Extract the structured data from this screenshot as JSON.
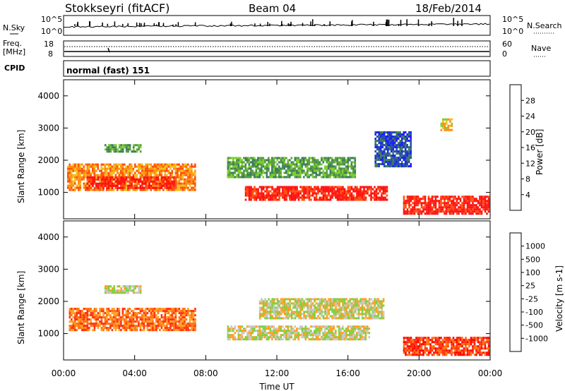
{
  "header": {
    "radar": "Stokkseyri (fitACF)",
    "beam": "Beam 04",
    "date": "18/Feb/2014"
  },
  "noise_panel": {
    "left_label": "N.Sky",
    "right_label": "N.Search",
    "ticks_left": [
      "10^5",
      "10^0"
    ],
    "ticks_right": [
      "10^5",
      "10^0"
    ]
  },
  "freq_panel": {
    "left_label": "Freq.",
    "unit": "[MHz]",
    "right_label": "Nave",
    "ticks_left": [
      "18",
      "8"
    ],
    "ticks_right": [
      "60",
      "0"
    ]
  },
  "cpid_panel": {
    "label": "CPID",
    "text": "normal (fast) 151"
  },
  "chart_data": [
    {
      "type": "heatmap",
      "quantity": "Power",
      "xlabel": "",
      "ylabel": "Slant Range [km]",
      "x_range_hours": [
        0,
        24
      ],
      "y_range_km": [
        180,
        4500
      ],
      "y_ticks": [
        "1000",
        "2000",
        "3000",
        "4000"
      ],
      "colorbar_label": "Power [dB]",
      "colorbar_ticks": [
        "28",
        "24",
        "20",
        "16",
        "12",
        "8",
        "4"
      ],
      "colorbar_colors": [
        "#2020ff",
        "#2b4faa",
        "#3f7f5f",
        "#5a9f40",
        "#7fcf30",
        "#f0c020",
        "#ff9010",
        "#ff5010",
        "#ff1010"
      ],
      "regions": [
        {
          "x": [
            0.2,
            7.4
          ],
          "y": [
            1050,
            1900
          ],
          "level": 6
        },
        {
          "x": [
            1.3,
            6.3
          ],
          "y": [
            1150,
            1500
          ],
          "level": 8
        },
        {
          "x": [
            9.2,
            16.4
          ],
          "y": [
            1500,
            2100
          ],
          "level": 3
        },
        {
          "x": [
            10.2,
            18.2
          ],
          "y": [
            800,
            1200
          ],
          "level": 8
        },
        {
          "x": [
            19.1,
            23.9
          ],
          "y": [
            350,
            900
          ],
          "level": 8
        },
        {
          "x": [
            2.3,
            4.3
          ],
          "y": [
            2250,
            2500
          ],
          "level": 3
        },
        {
          "x": [
            21.2,
            21.8
          ],
          "y": [
            2950,
            3300
          ],
          "level": 5
        },
        {
          "x": [
            17.5,
            19.5
          ],
          "y": [
            1800,
            2900
          ],
          "level": 1
        }
      ]
    },
    {
      "type": "heatmap",
      "quantity": "Velocity",
      "xlabel": "Time UT",
      "ylabel": "Slant Range [km]",
      "x_range_hours": [
        0,
        24
      ],
      "y_range_km": [
        180,
        4500
      ],
      "x_ticks": [
        "00:00",
        "04:00",
        "08:00",
        "12:00",
        "16:00",
        "20:00",
        "00:00"
      ],
      "y_ticks": [
        "1000",
        "2000",
        "3000",
        "4000"
      ],
      "colorbar_label": "Velocity [m s-1]",
      "colorbar_ticks": [
        "1000",
        "500",
        "100",
        "25",
        "-25",
        "-100",
        "-500",
        "-1000"
      ],
      "colorbar_colors": [
        "#2040c0",
        "#2b6fa0",
        "#3f9f60",
        "#80d040",
        "#c8c8c0",
        "#ffa020",
        "#ff7010",
        "#ff3010",
        "#ff0000"
      ],
      "regions": [
        {
          "x": [
            0.3,
            7.4
          ],
          "y": [
            1100,
            1800
          ],
          "level": 6
        },
        {
          "x": [
            9.2,
            17.2
          ],
          "y": [
            850,
            1250
          ],
          "level": 4
        },
        {
          "x": [
            11.0,
            18.0
          ],
          "y": [
            1500,
            2100
          ],
          "level": 4
        },
        {
          "x": [
            19.1,
            23.9
          ],
          "y": [
            350,
            900
          ],
          "level": 7
        },
        {
          "x": [
            2.3,
            4.3
          ],
          "y": [
            2250,
            2500
          ],
          "level": 4
        }
      ]
    }
  ]
}
